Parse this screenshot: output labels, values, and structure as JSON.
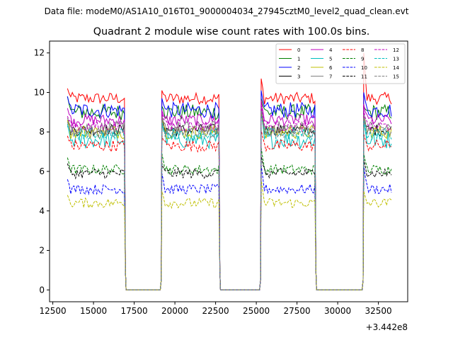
{
  "header": {
    "suptitle": "Data file: modeM0/AS1A10_016T01_9000004034_27945cztM0_level2_quad_clean.evt"
  },
  "chart_data": {
    "type": "line",
    "title": "Quadrant 2 module wise count rates with 100.0s bins.",
    "xlabel": "",
    "ylabel": "",
    "x_offset_label": "+3.442e8",
    "xlim": [
      12300,
      34300
    ],
    "ylim": [
      -0.6,
      12.6
    ],
    "xticks": [
      12500,
      15000,
      17500,
      20000,
      22500,
      25000,
      27500,
      30000,
      32500
    ],
    "yticks": [
      0,
      2,
      4,
      6,
      8,
      10,
      12
    ],
    "grid": false,
    "legend_position": "top-right",
    "legend_columns": 4,
    "data_segments": [
      {
        "start": 13400,
        "end": 16900
      },
      {
        "start": 19200,
        "end": 22700
      },
      {
        "start": 25300,
        "end": 28600
      },
      {
        "start": 31600,
        "end": 33300
      }
    ],
    "gaps": [
      {
        "start": 17000,
        "end": 19100
      },
      {
        "start": 22800,
        "end": 25200
      },
      {
        "start": 28700,
        "end": 31500
      }
    ],
    "series": [
      {
        "name": "0",
        "color": "#ff0000",
        "style": "solid",
        "level": 9.7,
        "noise": 0.3,
        "peaks": [
          10.2,
          10.1,
          10.7,
          12.0
        ]
      },
      {
        "name": "1",
        "color": "#008000",
        "style": "solid",
        "level": 9.0,
        "noise": 0.4,
        "peaks": [
          9.8,
          9.3,
          9.7,
          9.3
        ]
      },
      {
        "name": "2",
        "color": "#0000ff",
        "style": "solid",
        "level": 9.1,
        "noise": 0.4,
        "peaks": [
          9.8,
          9.7,
          10.1,
          10.0
        ]
      },
      {
        "name": "3",
        "color": "#000000",
        "style": "solid",
        "level": 8.1,
        "noise": 0.3,
        "peaks": [
          8.6,
          8.8,
          9.1,
          8.6
        ]
      },
      {
        "name": "4",
        "color": "#bf00bf",
        "style": "solid",
        "level": 8.6,
        "noise": 0.3,
        "peaks": [
          9.2,
          9.1,
          9.6,
          9.4
        ]
      },
      {
        "name": "5",
        "color": "#00bfbf",
        "style": "solid",
        "level": 7.6,
        "noise": 0.45,
        "peaks": [
          8.4,
          8.5,
          9.2,
          8.5
        ]
      },
      {
        "name": "6",
        "color": "#bfbf00",
        "style": "solid",
        "level": 8.0,
        "noise": 0.35,
        "peaks": [
          8.6,
          8.7,
          9.0,
          8.8
        ]
      },
      {
        "name": "7",
        "color": "#808080",
        "style": "solid",
        "level": 8.2,
        "noise": 0.35,
        "peaks": [
          8.7,
          8.8,
          9.3,
          8.9
        ]
      },
      {
        "name": "8",
        "color": "#ff0000",
        "style": "dashed",
        "level": 7.3,
        "noise": 0.3,
        "peaks": [
          7.8,
          7.8,
          8.1,
          7.9
        ]
      },
      {
        "name": "9",
        "color": "#008000",
        "style": "dashed",
        "level": 6.1,
        "noise": 0.25,
        "peaks": [
          6.7,
          6.9,
          7.2,
          6.9
        ]
      },
      {
        "name": "10",
        "color": "#0000ff",
        "style": "dashed",
        "level": 5.1,
        "noise": 0.25,
        "peaks": [
          5.6,
          5.9,
          6.3,
          6.3
        ]
      },
      {
        "name": "11",
        "color": "#000000",
        "style": "dashed",
        "level": 5.9,
        "noise": 0.25,
        "peaks": [
          6.4,
          6.4,
          6.8,
          6.6
        ]
      },
      {
        "name": "12",
        "color": "#bf00bf",
        "style": "dashed",
        "level": 8.3,
        "noise": 0.3,
        "peaks": [
          8.8,
          9.0,
          9.4,
          9.1
        ]
      },
      {
        "name": "13",
        "color": "#00bfbf",
        "style": "dashed",
        "level": 7.9,
        "noise": 0.3,
        "peaks": [
          8.3,
          8.6,
          8.9,
          8.7
        ]
      },
      {
        "name": "14",
        "color": "#bfbf00",
        "style": "dashed",
        "level": 4.4,
        "noise": 0.25,
        "peaks": [
          4.8,
          5.0,
          5.6,
          5.0
        ]
      },
      {
        "name": "15",
        "color": "#808080",
        "style": "dashed",
        "level": 8.0,
        "noise": 0.3,
        "peaks": [
          8.5,
          8.6,
          9.0,
          8.7
        ]
      }
    ]
  }
}
